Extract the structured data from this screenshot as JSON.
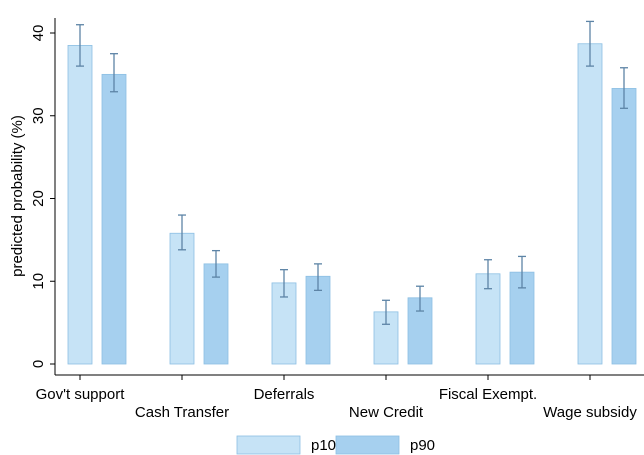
{
  "chart_data": {
    "type": "bar",
    "y_label": "predicted probability (%)",
    "categories": [
      "Gov't support",
      "Cash Transfer",
      "Deferrals",
      "New Credit",
      "Fiscal Exempt.",
      "Wage subsidy"
    ],
    "series": [
      {
        "name": "p10",
        "color": "#c6e3f6",
        "values": [
          38.5,
          15.8,
          9.8,
          6.3,
          10.9,
          38.7
        ],
        "lower": [
          36.0,
          13.8,
          8.1,
          4.8,
          9.1,
          36.0
        ],
        "upper": [
          41.0,
          18.0,
          11.4,
          7.7,
          12.6,
          41.4
        ]
      },
      {
        "name": "p90",
        "color": "#a6d0ef",
        "values": [
          35.0,
          12.1,
          10.6,
          8.0,
          11.1,
          33.3
        ],
        "lower": [
          32.9,
          10.5,
          8.9,
          6.4,
          9.2,
          30.9
        ],
        "upper": [
          37.5,
          13.7,
          12.1,
          9.4,
          13.0,
          35.8
        ]
      }
    ],
    "ylim": [
      0,
      40
    ],
    "yticks": [
      0,
      10,
      20,
      30,
      40
    ],
    "grid": false,
    "legend": "bottom"
  }
}
